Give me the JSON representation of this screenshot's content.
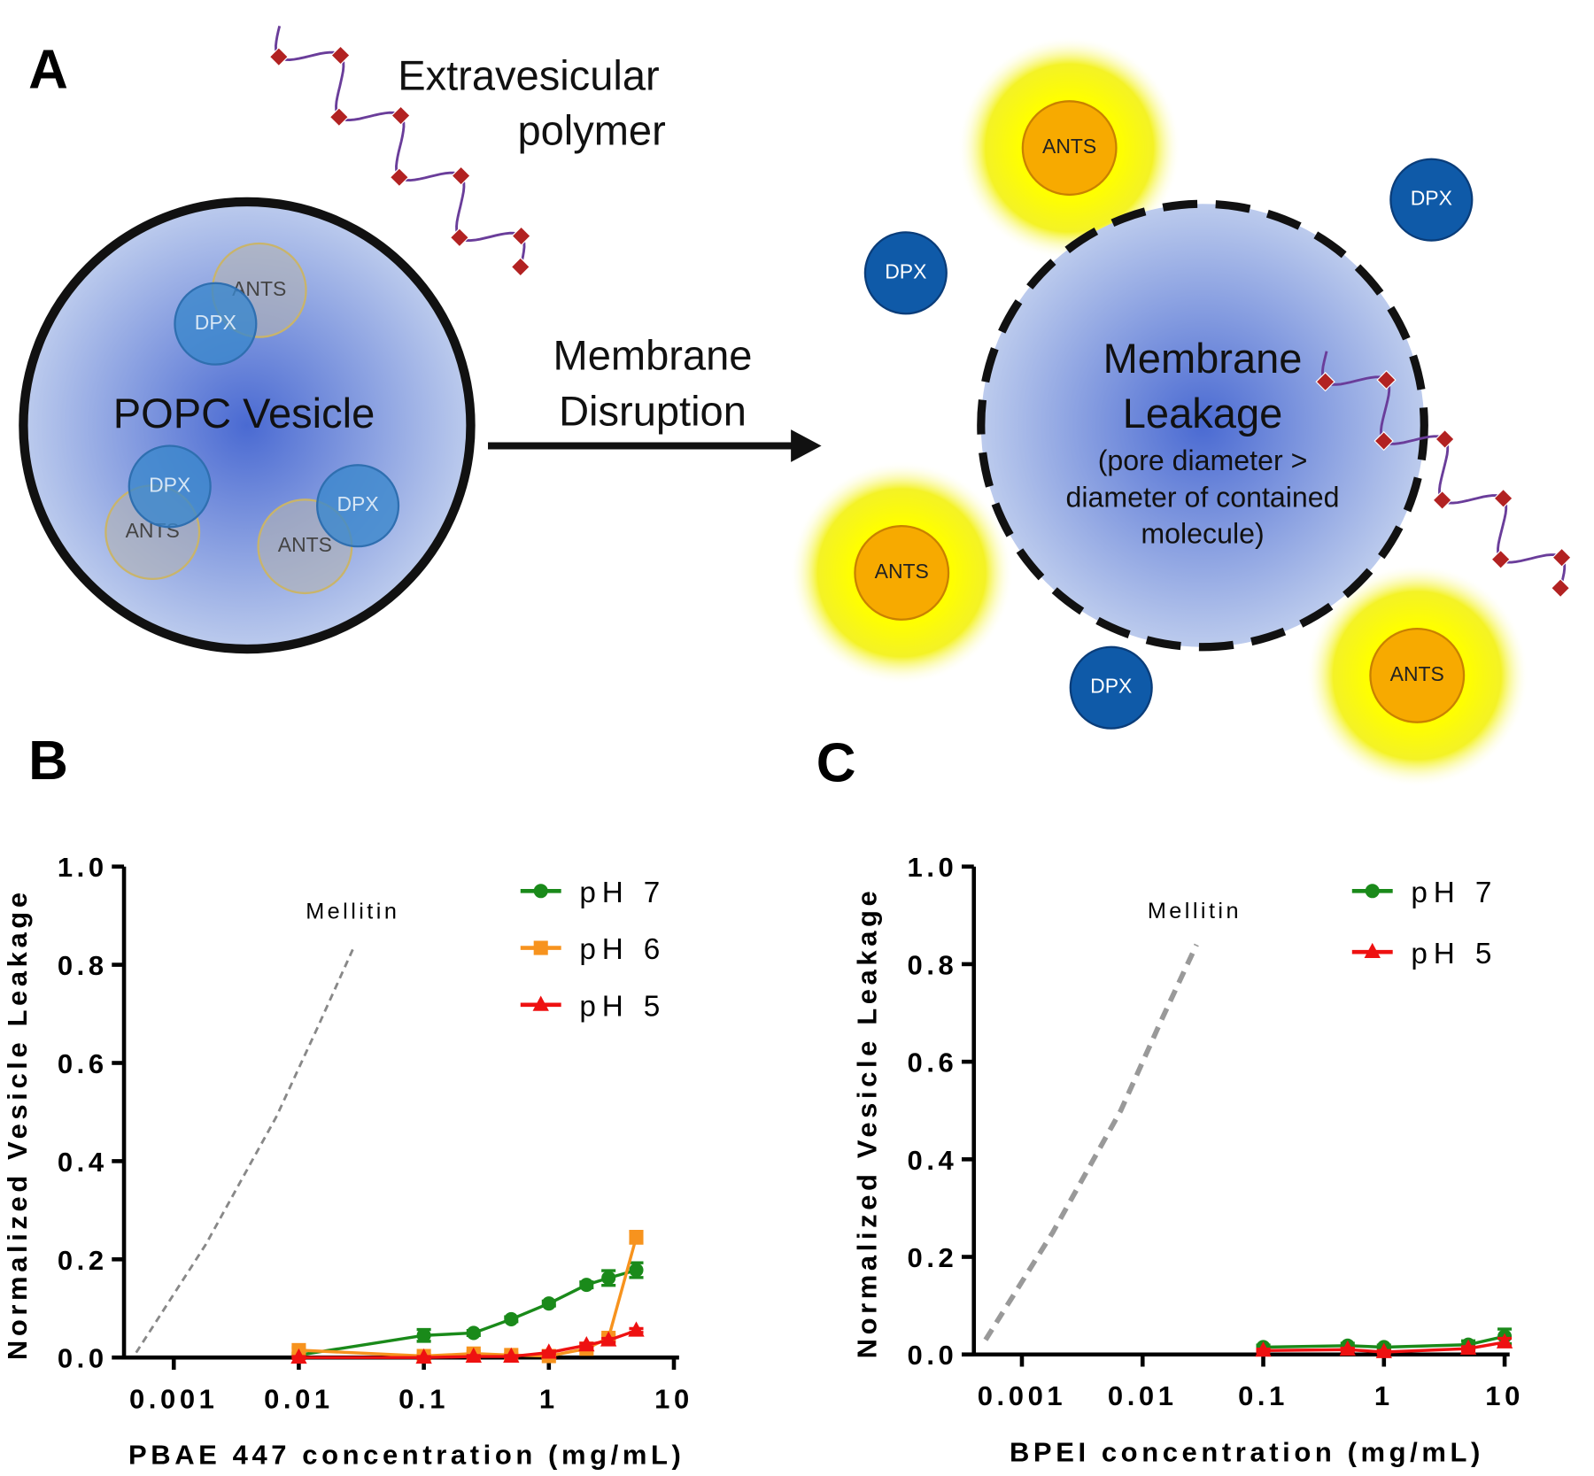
{
  "panel_labels": [
    "A",
    "B",
    "C"
  ],
  "diagram": {
    "polymer_label": [
      "Extravesicular",
      "polymer"
    ],
    "vesicle_label": "POPC Vesicle",
    "inside_molecules": [
      "ANTS",
      "DPX",
      "ANTS",
      "DPX",
      "ANTS",
      "DPX"
    ],
    "arrow_label": [
      "Membrane",
      "Disruption"
    ],
    "leakage_label": [
      "Membrane",
      "Leakage"
    ],
    "leakage_note": [
      "(pore diameter >",
      "diameter of contained",
      "molecule)"
    ],
    "outside_molecules": [
      "ANTS",
      "DPX",
      "DPX",
      "ANTS",
      "ANTS",
      "DPX"
    ]
  },
  "chart_data": [
    {
      "type": "line",
      "x_label": "PBAE 447 concentration (mg/mL)",
      "y_label": "Normalized Vesicle Leakage",
      "log_x": true,
      "xlim": [
        0.0004,
        11
      ],
      "xticks": [
        0.001,
        0.01,
        0.1,
        1,
        10
      ],
      "ylim": [
        0,
        1
      ],
      "yticks": [
        {
          "value": 0,
          "label": "0.0"
        },
        0.2,
        0.4,
        0.6,
        0.8,
        {
          "value": 1,
          "label": "1.0"
        }
      ],
      "series": [
        {
          "name": "pH 7",
          "color": "#1a8a1a",
          "marker": "circle",
          "x": [
            0.01,
            0.1,
            0.25,
            0.5,
            1,
            2,
            3,
            5
          ],
          "values": [
            0.005,
            0.045,
            0.05,
            0.078,
            0.11,
            0.148,
            0.162,
            0.178
          ],
          "errors": [
            0.003,
            0.012,
            0.005,
            0.005,
            0.005,
            0.006,
            0.015,
            0.015
          ]
        },
        {
          "name": "pH 6",
          "color": "#f7931e",
          "marker": "square",
          "x": [
            0.01,
            0.1,
            0.25,
            0.5,
            1,
            2,
            3,
            5
          ],
          "values": [
            0.015,
            0.003,
            0.008,
            0.005,
            0.003,
            0.018,
            0.04,
            0.245
          ],
          "errors": [
            0.005,
            0.003,
            0.004,
            0.003,
            0.003,
            0.004,
            0.006,
            0.012
          ]
        },
        {
          "name": "pH 5",
          "color": "#ee1111",
          "marker": "triangle",
          "x": [
            0.01,
            0.1,
            0.25,
            0.5,
            1,
            2,
            3,
            5
          ],
          "values": [
            0,
            0,
            0.002,
            0.002,
            0.01,
            0.025,
            0.035,
            0.055
          ],
          "errors": [
            0.002,
            0.002,
            0.002,
            0.002,
            0.003,
            0.004,
            0.004,
            0.004
          ]
        }
      ],
      "reference": {
        "name": "Mellitin",
        "color": "#888888",
        "x": [
          0.0005,
          0.0018,
          0.0066,
          0.014,
          0.028
        ],
        "values": [
          0.01,
          0.23,
          0.49,
          0.67,
          0.84
        ]
      }
    },
    {
      "type": "line",
      "x_label": "BPEI concentration (mg/mL)",
      "y_label": "Normalized Vesicle Leakage",
      "log_x": true,
      "xlim": [
        0.0004,
        11
      ],
      "xticks": [
        0.001,
        0.01,
        0.1,
        1,
        10
      ],
      "ylim": [
        0,
        1
      ],
      "yticks": [
        {
          "value": 0,
          "label": "0.0"
        },
        0.2,
        0.4,
        0.6,
        0.8,
        {
          "value": 1,
          "label": "1.0"
        }
      ],
      "series": [
        {
          "name": "pH 7",
          "color": "#1a8a1a",
          "marker": "circle",
          "x": [
            0.1,
            0.5,
            1,
            5,
            10
          ],
          "values": [
            0.015,
            0.018,
            0.015,
            0.02,
            0.037
          ],
          "errors": [
            0.004,
            0.005,
            0.004,
            0.008,
            0.015
          ]
        },
        {
          "name": "pH 5",
          "color": "#ee1111",
          "marker": "triangle",
          "x": [
            0.1,
            0.5,
            1,
            5,
            10
          ],
          "values": [
            0.008,
            0.01,
            0.005,
            0.012,
            0.025
          ],
          "errors": [
            0.003,
            0.003,
            0.003,
            0.004,
            0.008
          ]
        }
      ],
      "reference": {
        "name": "Mellitin",
        "color": "#999999",
        "x": [
          0.0005,
          0.0018,
          0.0066,
          0.014,
          0.028
        ],
        "values": [
          0.03,
          0.25,
          0.5,
          0.68,
          0.84
        ]
      }
    }
  ]
}
